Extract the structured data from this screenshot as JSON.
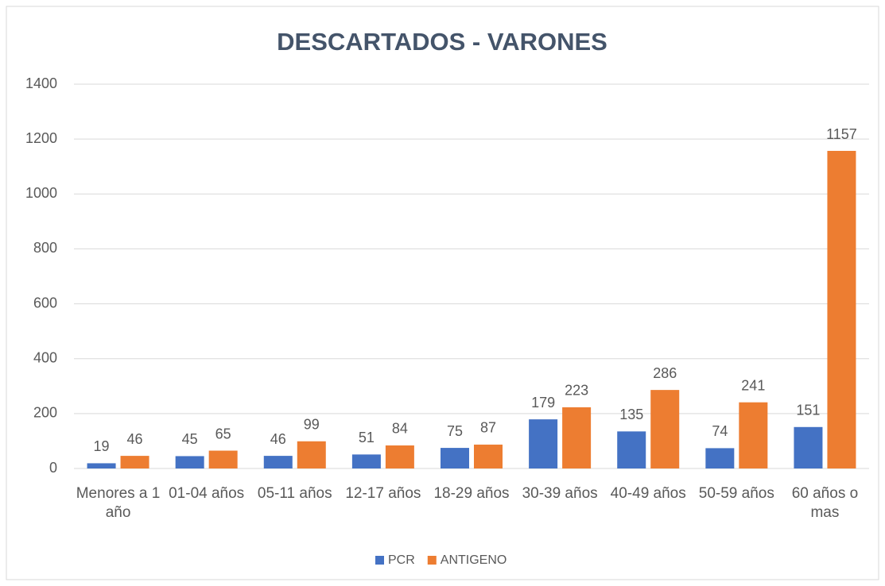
{
  "chart_data": {
    "type": "bar",
    "title": "DESCARTADOS - VARONES",
    "categories": [
      "Menores a 1 año",
      "01-04 años",
      "05-11 años",
      "12-17 años",
      "18-29 años",
      "30-39 años",
      "40-49 años",
      "50-59 años",
      "60 años o mas"
    ],
    "series": [
      {
        "name": "PCR",
        "color": "#4472c4",
        "values": [
          19,
          45,
          46,
          51,
          75,
          179,
          135,
          74,
          151
        ]
      },
      {
        "name": "ANTIGENO",
        "color": "#ed7d31",
        "values": [
          46,
          65,
          99,
          84,
          87,
          223,
          286,
          241,
          1157
        ]
      }
    ],
    "ylim": [
      0,
      1400
    ],
    "yticks": [
      0,
      200,
      400,
      600,
      800,
      1000,
      1200,
      1400
    ],
    "grid": true,
    "legend": "bottom"
  }
}
